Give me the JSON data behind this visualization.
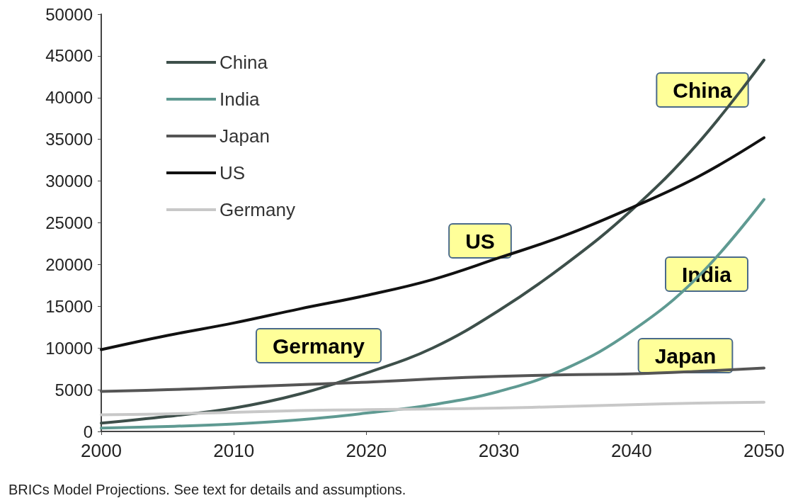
{
  "chart_data": {
    "type": "line",
    "x": [
      2000,
      2005,
      2010,
      2015,
      2020,
      2025,
      2030,
      2035,
      2040,
      2045,
      2050
    ],
    "series": [
      {
        "name": "China",
        "color": "#3d4f4a",
        "values": [
          1000,
          1800,
          2800,
          4500,
          7000,
          10000,
          14500,
          20000,
          26500,
          34500,
          44500
        ]
      },
      {
        "name": "India",
        "color": "#5f9a92",
        "values": [
          400,
          600,
          900,
          1400,
          2200,
          3200,
          4800,
          7500,
          12000,
          18500,
          27800
        ]
      },
      {
        "name": "Japan",
        "color": "#555555",
        "values": [
          4800,
          5000,
          5300,
          5600,
          5900,
          6300,
          6600,
          6800,
          6900,
          7200,
          7600
        ]
      },
      {
        "name": "US",
        "color": "#111111",
        "values": [
          9800,
          11500,
          13000,
          14700,
          16300,
          18200,
          20800,
          23500,
          26800,
          30500,
          35200
        ]
      },
      {
        "name": "Germany",
        "color": "#c8c8c8",
        "values": [
          2000,
          2100,
          2300,
          2500,
          2600,
          2700,
          2800,
          3000,
          3200,
          3400,
          3500
        ]
      }
    ],
    "xlim": [
      2000,
      2050
    ],
    "xticks": [
      2000,
      2010,
      2020,
      2030,
      2040,
      2050
    ],
    "ylim": [
      0,
      50000
    ],
    "yticks": [
      0,
      5000,
      10000,
      15000,
      20000,
      25000,
      30000,
      35000,
      40000,
      45000,
      50000
    ],
    "grid": false,
    "legend": "top left",
    "marker": "none",
    "line_style": "solid",
    "annotations": [
      "China",
      "US",
      "India",
      "Japan",
      "Germany",
      "BRICs Model Projections. See text for details and assumptions."
    ]
  }
}
